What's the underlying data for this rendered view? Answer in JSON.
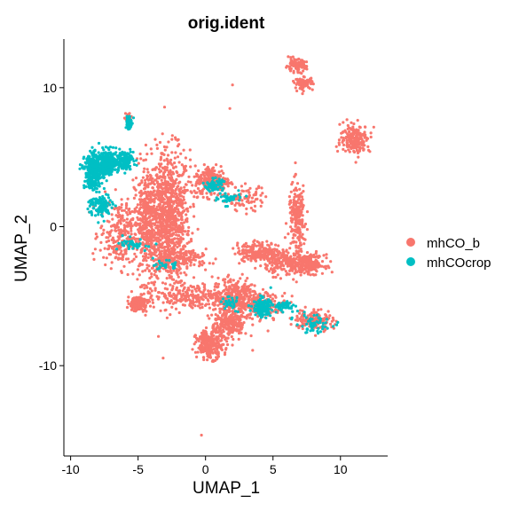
{
  "chart_data": {
    "type": "scatter",
    "title": "orig.ident",
    "xlabel": "UMAP_1",
    "ylabel": "UMAP_2",
    "xlim": [
      -10.5,
      13.5
    ],
    "ylim": [
      -16.5,
      13.5
    ],
    "xticks": [
      -10,
      -5,
      0,
      5,
      10
    ],
    "yticks": [
      -10,
      0,
      10
    ],
    "grid": false,
    "legend_position": "right",
    "series": [
      {
        "name": "mhCO_b",
        "color": "#F8766D",
        "clusters": [
          {
            "center": [
              -2.7,
              0.5
            ],
            "spread": [
              1.4,
              4.5
            ],
            "count": 900
          },
          {
            "center": [
              -4.2,
              0.2
            ],
            "spread": [
              1.0,
              3.8
            ],
            "count": 450
          },
          {
            "center": [
              -6.3,
              -0.5
            ],
            "spread": [
              1.4,
              2.2
            ],
            "count": 260
          },
          {
            "center": [
              0.5,
              3.3
            ],
            "spread": [
              1.2,
              1.0
            ],
            "count": 240
          },
          {
            "center": [
              -1.0,
              -5.0
            ],
            "spread": [
              2.8,
              0.8
            ],
            "count": 220
          },
          {
            "center": [
              2.2,
              -5.0
            ],
            "spread": [
              1.5,
              1.2
            ],
            "count": 280
          },
          {
            "center": [
              4.0,
              -1.8
            ],
            "spread": [
              1.5,
              0.6
            ],
            "count": 220
          },
          {
            "center": [
              6.2,
              -2.6
            ],
            "spread": [
              1.6,
              0.8
            ],
            "count": 240
          },
          {
            "center": [
              6.8,
              0.6
            ],
            "spread": [
              0.6,
              2.2
            ],
            "count": 200
          },
          {
            "center": [
              7.8,
              -2.7
            ],
            "spread": [
              0.9,
              0.6
            ],
            "count": 160
          },
          {
            "center": [
              1.8,
              -6.9
            ],
            "spread": [
              1.2,
              1.2
            ],
            "count": 260
          },
          {
            "center": [
              0.3,
              -8.5
            ],
            "spread": [
              0.9,
              0.9
            ],
            "count": 260
          },
          {
            "center": [
              4.5,
              -5.6
            ],
            "spread": [
              1.4,
              0.8
            ],
            "count": 120
          },
          {
            "center": [
              8.0,
              -6.7
            ],
            "spread": [
              1.3,
              0.7
            ],
            "count": 140
          },
          {
            "center": [
              -5.0,
              -5.5
            ],
            "spread": [
              0.7,
              0.5
            ],
            "count": 140
          },
          {
            "center": [
              6.7,
              11.6
            ],
            "spread": [
              0.7,
              0.4
            ],
            "count": 110
          },
          {
            "center": [
              7.3,
              10.3
            ],
            "spread": [
              0.6,
              0.4
            ],
            "count": 80
          },
          {
            "center": [
              11.1,
              6.3
            ],
            "spread": [
              1.0,
              0.9
            ],
            "count": 210
          },
          {
            "center": [
              -5.7,
              7.8
            ],
            "spread": [
              0.2,
              0.4
            ],
            "count": 30
          },
          {
            "center": [
              -1.5,
              -2.3
            ],
            "spread": [
              1.5,
              0.6
            ],
            "count": 120
          },
          {
            "center": [
              3.0,
              2.0
            ],
            "spread": [
              1.3,
              0.8
            ],
            "count": 80
          }
        ],
        "outliers": [
          [
            -0.3,
            -15.0
          ],
          [
            2.0,
            10.2
          ],
          [
            1.8,
            8.5
          ],
          [
            7.5,
            10.5
          ],
          [
            10.2,
            7.5
          ]
        ]
      },
      {
        "name": "mhCOcrop",
        "color": "#00BFC4",
        "clusters": [
          {
            "center": [
              -8.3,
              4.0
            ],
            "spread": [
              0.6,
              1.1
            ],
            "count": 360
          },
          {
            "center": [
              -7.2,
              4.6
            ],
            "spread": [
              0.7,
              0.8
            ],
            "count": 240
          },
          {
            "center": [
              -6.0,
              4.8
            ],
            "spread": [
              0.6,
              0.6
            ],
            "count": 120
          },
          {
            "center": [
              -5.7,
              7.5
            ],
            "spread": [
              0.2,
              0.5
            ],
            "count": 60
          },
          {
            "center": [
              -7.8,
              1.5
            ],
            "spread": [
              0.8,
              0.8
            ],
            "count": 110
          },
          {
            "center": [
              -5.2,
              -1.3
            ],
            "spread": [
              1.1,
              0.4
            ],
            "count": 40
          },
          {
            "center": [
              -3.0,
              -2.8
            ],
            "spread": [
              0.7,
              0.3
            ],
            "count": 30
          },
          {
            "center": [
              0.6,
              3.0
            ],
            "spread": [
              0.6,
              0.4
            ],
            "count": 70
          },
          {
            "center": [
              1.8,
              2.0
            ],
            "spread": [
              0.8,
              0.4
            ],
            "count": 40
          },
          {
            "center": [
              4.2,
              -5.8
            ],
            "spread": [
              0.6,
              0.6
            ],
            "count": 150
          },
          {
            "center": [
              5.8,
              -5.7
            ],
            "spread": [
              0.8,
              0.3
            ],
            "count": 60
          },
          {
            "center": [
              8.0,
              -7.0
            ],
            "spread": [
              1.2,
              0.6
            ],
            "count": 60
          },
          {
            "center": [
              1.8,
              -5.5
            ],
            "spread": [
              0.7,
              0.5
            ],
            "count": 30
          }
        ],
        "outliers": []
      }
    ]
  },
  "colors": {
    "background": "#ffffff",
    "axis": "#000000",
    "mhCO_b": "#F8766D",
    "mhCOcrop": "#00BFC4"
  }
}
